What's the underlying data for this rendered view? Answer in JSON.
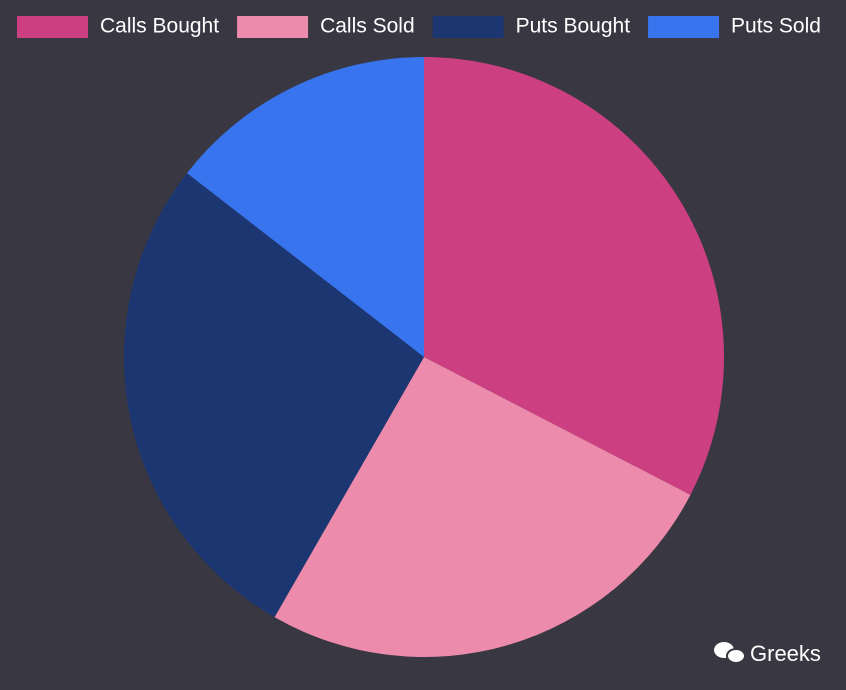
{
  "chart_data": {
    "type": "pie",
    "categories": [
      "Calls Bought",
      "Calls Sold",
      "Puts Bought",
      "Puts Sold"
    ],
    "values": [
      32.6,
      25.7,
      27.2,
      14.5
    ],
    "colors": [
      "#cc3f80",
      "#ec8bac",
      "#1c3672",
      "#3874ee"
    ],
    "legend": "top",
    "watermark": "Greeks"
  }
}
